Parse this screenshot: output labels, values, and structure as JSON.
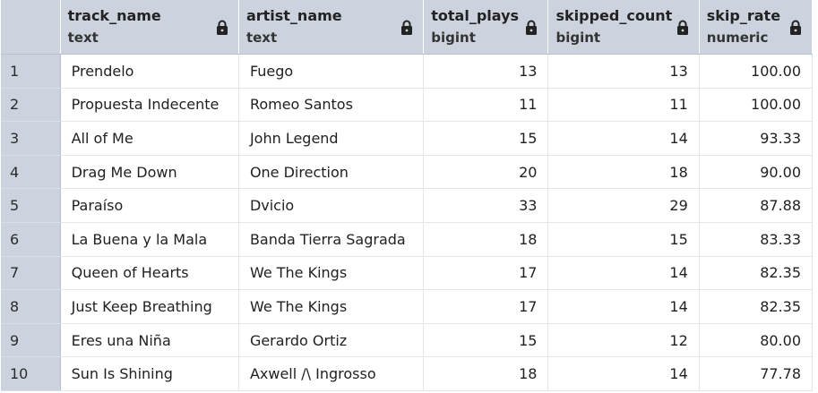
{
  "columns": [
    {
      "name": "track_name",
      "type": "text"
    },
    {
      "name": "artist_name",
      "type": "text"
    },
    {
      "name": "total_plays",
      "type": "bigint"
    },
    {
      "name": "skipped_count",
      "type": "bigint"
    },
    {
      "name": "skip_rate",
      "type": "numeric"
    }
  ],
  "rows": [
    {
      "n": "1",
      "track_name": "Prendelo",
      "artist_name": "Fuego",
      "total_plays": "13",
      "skipped_count": "13",
      "skip_rate": "100.00"
    },
    {
      "n": "2",
      "track_name": "Propuesta Indecente",
      "artist_name": "Romeo Santos",
      "total_plays": "11",
      "skipped_count": "11",
      "skip_rate": "100.00"
    },
    {
      "n": "3",
      "track_name": "All of Me",
      "artist_name": "John Legend",
      "total_plays": "15",
      "skipped_count": "14",
      "skip_rate": "93.33"
    },
    {
      "n": "4",
      "track_name": "Drag Me Down",
      "artist_name": "One Direction",
      "total_plays": "20",
      "skipped_count": "18",
      "skip_rate": "90.00"
    },
    {
      "n": "5",
      "track_name": "Paraíso",
      "artist_name": "Dvicio",
      "total_plays": "33",
      "skipped_count": "29",
      "skip_rate": "87.88"
    },
    {
      "n": "6",
      "track_name": "La Buena y la Mala",
      "artist_name": "Banda Tierra Sagrada",
      "total_plays": "18",
      "skipped_count": "15",
      "skip_rate": "83.33"
    },
    {
      "n": "7",
      "track_name": "Queen of Hearts",
      "artist_name": "We The Kings",
      "total_plays": "17",
      "skipped_count": "14",
      "skip_rate": "82.35"
    },
    {
      "n": "8",
      "track_name": "Just Keep Breathing",
      "artist_name": "We The Kings",
      "total_plays": "17",
      "skipped_count": "14",
      "skip_rate": "82.35"
    },
    {
      "n": "9",
      "track_name": "Eres una Niña",
      "artist_name": "Gerardo Ortiz",
      "total_plays": "15",
      "skipped_count": "12",
      "skip_rate": "80.00"
    },
    {
      "n": "10",
      "track_name": "Sun Is Shining",
      "artist_name": "Axwell /\\ Ingrosso",
      "total_plays": "18",
      "skipped_count": "14",
      "skip_rate": "77.78"
    }
  ],
  "icons": {
    "column_lock": "lock-icon"
  },
  "colors": {
    "header_bg": "#cdd3de",
    "row_border": "#e3e6ea"
  }
}
